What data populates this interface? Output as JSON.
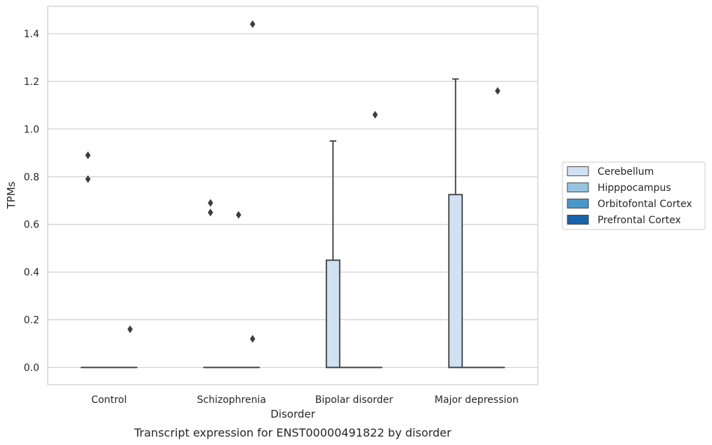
{
  "chart_data": {
    "type": "box",
    "title": "",
    "caption": "Transcript expression for ENST00000491822 by disorder",
    "xlabel": "Disorder",
    "ylabel": "TPMs",
    "ylim": [
      -0.07,
      1.52
    ],
    "yticks": [
      0.0,
      0.2,
      0.4,
      0.6,
      0.8,
      1.0,
      1.2,
      1.4
    ],
    "grid": "horizontal",
    "legend_position": "right",
    "categories": [
      "Control",
      "Schizophrenia",
      "Bipolar disorder",
      "Major depression"
    ],
    "series": [
      {
        "name": "Cerebellum",
        "color": "#d0e1f2",
        "boxes": [
          {
            "q1": 0,
            "median": 0,
            "q3": 0,
            "whisker_low": 0,
            "whisker_high": 0,
            "outliers": [
              0.89,
              0.79
            ]
          },
          {
            "q1": 0,
            "median": 0,
            "q3": 0,
            "whisker_low": 0,
            "whisker_high": 0,
            "outliers": [
              0.69,
              0.65
            ]
          },
          {
            "q1": 0,
            "median": 0,
            "q3": 0.45,
            "whisker_low": 0,
            "whisker_high": 0.95,
            "outliers": []
          },
          {
            "q1": 0,
            "median": 0,
            "q3": 0.725,
            "whisker_low": 0,
            "whisker_high": 1.21,
            "outliers": []
          }
        ]
      },
      {
        "name": "Hipppocampus",
        "color": "#94c4df",
        "boxes": [
          {
            "q1": 0,
            "median": 0,
            "q3": 0,
            "whisker_low": 0,
            "whisker_high": 0,
            "outliers": []
          },
          {
            "q1": 0,
            "median": 0,
            "q3": 0,
            "whisker_low": 0,
            "whisker_high": 0,
            "outliers": []
          },
          {
            "q1": 0,
            "median": 0,
            "q3": 0,
            "whisker_low": 0,
            "whisker_high": 0,
            "outliers": []
          },
          {
            "q1": 0,
            "median": 0,
            "q3": 0,
            "whisker_low": 0,
            "whisker_high": 0,
            "outliers": []
          }
        ]
      },
      {
        "name": "Orbitofontal Cortex",
        "color": "#4a98c9",
        "boxes": [
          {
            "q1": 0,
            "median": 0,
            "q3": 0,
            "whisker_low": 0,
            "whisker_high": 0,
            "outliers": []
          },
          {
            "q1": 0,
            "median": 0,
            "q3": 0,
            "whisker_low": 0,
            "whisker_high": 0,
            "outliers": [
              0.64
            ]
          },
          {
            "q1": 0,
            "median": 0,
            "q3": 0,
            "whisker_low": 0,
            "whisker_high": 0,
            "outliers": []
          },
          {
            "q1": 0,
            "median": 0,
            "q3": 0,
            "whisker_low": 0,
            "whisker_high": 0,
            "outliers": []
          }
        ]
      },
      {
        "name": "Prefrontal Cortex",
        "color": "#1764ab",
        "boxes": [
          {
            "q1": 0,
            "median": 0,
            "q3": 0,
            "whisker_low": 0,
            "whisker_high": 0,
            "outliers": [
              0.16
            ]
          },
          {
            "q1": 0,
            "median": 0,
            "q3": 0,
            "whisker_low": 0,
            "whisker_high": 0,
            "outliers": [
              1.44,
              0.12
            ]
          },
          {
            "q1": 0,
            "median": 0,
            "q3": 0,
            "whisker_low": 0,
            "whisker_high": 0,
            "outliers": [
              1.06
            ]
          },
          {
            "q1": 0,
            "median": 0,
            "q3": 0,
            "whisker_low": 0,
            "whisker_high": 0,
            "outliers": [
              1.16
            ]
          }
        ]
      }
    ]
  }
}
